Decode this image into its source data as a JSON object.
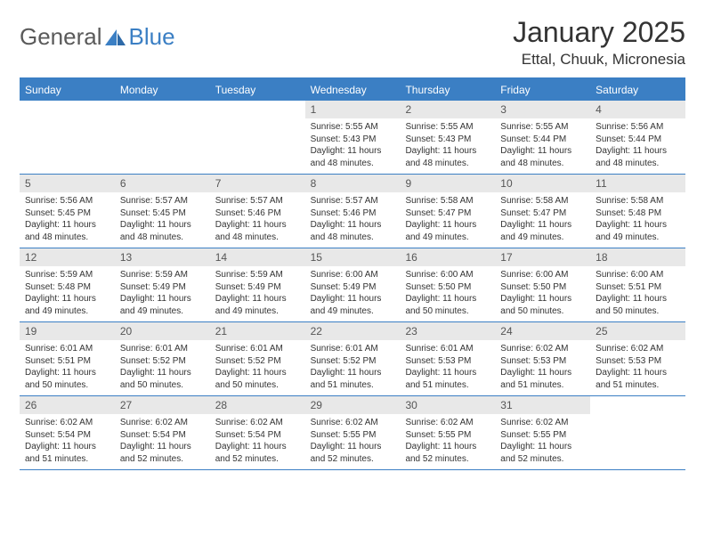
{
  "logo": {
    "general": "General",
    "blue": "Blue"
  },
  "title": "January 2025",
  "subtitle": "Ettal, Chuuk, Micronesia",
  "colors": {
    "accent": "#3b7fc4",
    "header_bg": "#3b7fc4",
    "header_text": "#ffffff",
    "daynum_bg": "#e8e8e8",
    "text": "#333333",
    "logo_gray": "#5a5a5a"
  },
  "fonts": {
    "title_size": 32,
    "subtitle_size": 17,
    "dayhead_size": 12,
    "daynum_size": 12,
    "body_size": 10
  },
  "dayheads": [
    "Sunday",
    "Monday",
    "Tuesday",
    "Wednesday",
    "Thursday",
    "Friday",
    "Saturday"
  ],
  "weeks": [
    [
      {
        "n": "",
        "sr": "",
        "ss": "",
        "dl": "",
        "empty": true
      },
      {
        "n": "",
        "sr": "",
        "ss": "",
        "dl": "",
        "empty": true
      },
      {
        "n": "",
        "sr": "",
        "ss": "",
        "dl": "",
        "empty": true
      },
      {
        "n": "1",
        "sr": "Sunrise: 5:55 AM",
        "ss": "Sunset: 5:43 PM",
        "dl": "Daylight: 11 hours and 48 minutes."
      },
      {
        "n": "2",
        "sr": "Sunrise: 5:55 AM",
        "ss": "Sunset: 5:43 PM",
        "dl": "Daylight: 11 hours and 48 minutes."
      },
      {
        "n": "3",
        "sr": "Sunrise: 5:55 AM",
        "ss": "Sunset: 5:44 PM",
        "dl": "Daylight: 11 hours and 48 minutes."
      },
      {
        "n": "4",
        "sr": "Sunrise: 5:56 AM",
        "ss": "Sunset: 5:44 PM",
        "dl": "Daylight: 11 hours and 48 minutes."
      }
    ],
    [
      {
        "n": "5",
        "sr": "Sunrise: 5:56 AM",
        "ss": "Sunset: 5:45 PM",
        "dl": "Daylight: 11 hours and 48 minutes."
      },
      {
        "n": "6",
        "sr": "Sunrise: 5:57 AM",
        "ss": "Sunset: 5:45 PM",
        "dl": "Daylight: 11 hours and 48 minutes."
      },
      {
        "n": "7",
        "sr": "Sunrise: 5:57 AM",
        "ss": "Sunset: 5:46 PM",
        "dl": "Daylight: 11 hours and 48 minutes."
      },
      {
        "n": "8",
        "sr": "Sunrise: 5:57 AM",
        "ss": "Sunset: 5:46 PM",
        "dl": "Daylight: 11 hours and 48 minutes."
      },
      {
        "n": "9",
        "sr": "Sunrise: 5:58 AM",
        "ss": "Sunset: 5:47 PM",
        "dl": "Daylight: 11 hours and 49 minutes."
      },
      {
        "n": "10",
        "sr": "Sunrise: 5:58 AM",
        "ss": "Sunset: 5:47 PM",
        "dl": "Daylight: 11 hours and 49 minutes."
      },
      {
        "n": "11",
        "sr": "Sunrise: 5:58 AM",
        "ss": "Sunset: 5:48 PM",
        "dl": "Daylight: 11 hours and 49 minutes."
      }
    ],
    [
      {
        "n": "12",
        "sr": "Sunrise: 5:59 AM",
        "ss": "Sunset: 5:48 PM",
        "dl": "Daylight: 11 hours and 49 minutes."
      },
      {
        "n": "13",
        "sr": "Sunrise: 5:59 AM",
        "ss": "Sunset: 5:49 PM",
        "dl": "Daylight: 11 hours and 49 minutes."
      },
      {
        "n": "14",
        "sr": "Sunrise: 5:59 AM",
        "ss": "Sunset: 5:49 PM",
        "dl": "Daylight: 11 hours and 49 minutes."
      },
      {
        "n": "15",
        "sr": "Sunrise: 6:00 AM",
        "ss": "Sunset: 5:49 PM",
        "dl": "Daylight: 11 hours and 49 minutes."
      },
      {
        "n": "16",
        "sr": "Sunrise: 6:00 AM",
        "ss": "Sunset: 5:50 PM",
        "dl": "Daylight: 11 hours and 50 minutes."
      },
      {
        "n": "17",
        "sr": "Sunrise: 6:00 AM",
        "ss": "Sunset: 5:50 PM",
        "dl": "Daylight: 11 hours and 50 minutes."
      },
      {
        "n": "18",
        "sr": "Sunrise: 6:00 AM",
        "ss": "Sunset: 5:51 PM",
        "dl": "Daylight: 11 hours and 50 minutes."
      }
    ],
    [
      {
        "n": "19",
        "sr": "Sunrise: 6:01 AM",
        "ss": "Sunset: 5:51 PM",
        "dl": "Daylight: 11 hours and 50 minutes."
      },
      {
        "n": "20",
        "sr": "Sunrise: 6:01 AM",
        "ss": "Sunset: 5:52 PM",
        "dl": "Daylight: 11 hours and 50 minutes."
      },
      {
        "n": "21",
        "sr": "Sunrise: 6:01 AM",
        "ss": "Sunset: 5:52 PM",
        "dl": "Daylight: 11 hours and 50 minutes."
      },
      {
        "n": "22",
        "sr": "Sunrise: 6:01 AM",
        "ss": "Sunset: 5:52 PM",
        "dl": "Daylight: 11 hours and 51 minutes."
      },
      {
        "n": "23",
        "sr": "Sunrise: 6:01 AM",
        "ss": "Sunset: 5:53 PM",
        "dl": "Daylight: 11 hours and 51 minutes."
      },
      {
        "n": "24",
        "sr": "Sunrise: 6:02 AM",
        "ss": "Sunset: 5:53 PM",
        "dl": "Daylight: 11 hours and 51 minutes."
      },
      {
        "n": "25",
        "sr": "Sunrise: 6:02 AM",
        "ss": "Sunset: 5:53 PM",
        "dl": "Daylight: 11 hours and 51 minutes."
      }
    ],
    [
      {
        "n": "26",
        "sr": "Sunrise: 6:02 AM",
        "ss": "Sunset: 5:54 PM",
        "dl": "Daylight: 11 hours and 51 minutes."
      },
      {
        "n": "27",
        "sr": "Sunrise: 6:02 AM",
        "ss": "Sunset: 5:54 PM",
        "dl": "Daylight: 11 hours and 52 minutes."
      },
      {
        "n": "28",
        "sr": "Sunrise: 6:02 AM",
        "ss": "Sunset: 5:54 PM",
        "dl": "Daylight: 11 hours and 52 minutes."
      },
      {
        "n": "29",
        "sr": "Sunrise: 6:02 AM",
        "ss": "Sunset: 5:55 PM",
        "dl": "Daylight: 11 hours and 52 minutes."
      },
      {
        "n": "30",
        "sr": "Sunrise: 6:02 AM",
        "ss": "Sunset: 5:55 PM",
        "dl": "Daylight: 11 hours and 52 minutes."
      },
      {
        "n": "31",
        "sr": "Sunrise: 6:02 AM",
        "ss": "Sunset: 5:55 PM",
        "dl": "Daylight: 11 hours and 52 minutes."
      },
      {
        "n": "",
        "sr": "",
        "ss": "",
        "dl": "",
        "empty": true
      }
    ]
  ]
}
